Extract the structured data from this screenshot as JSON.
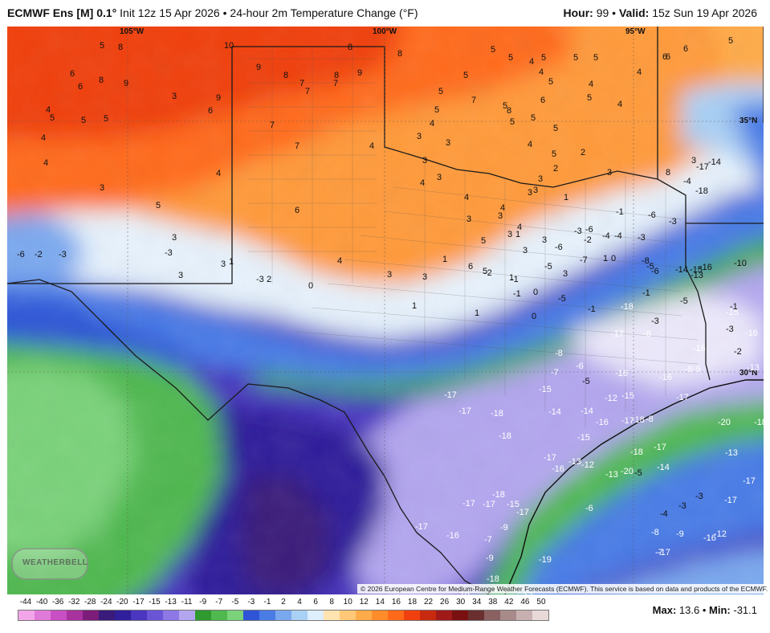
{
  "header": {
    "model": "ECMWF Ens [M] 0.1°",
    "init": "Init 12z 15 Apr 2026",
    "product": "24-hour 2m Temperature Change (°F)",
    "hour_label": "Hour:",
    "hour_value": "99",
    "valid_label": "Valid:",
    "valid_value": "15z Sun 19 Apr 2026"
  },
  "footer": {
    "max_label": "Max:",
    "max_value": "13.6",
    "min_label": "Min:",
    "min_value": "-31.1",
    "credit": "© 2026 European Centre for Medium-Range Weather Forecasts (ECMWF). This service is based on data and products of the ECMWF.",
    "logo": "WEATHERBELL"
  },
  "map": {
    "grid_labels": [
      "105°W",
      "100°W",
      "95°W",
      "35°N",
      "30°N"
    ],
    "values": [
      "5",
      "8",
      "10",
      "8",
      "8",
      "5",
      "5",
      "5",
      "5",
      "5",
      "6",
      "6",
      "6",
      "5",
      "9",
      "8",
      "7",
      "8",
      "9",
      "7",
      "5",
      "5",
      "4",
      "4",
      "5",
      "4",
      "6",
      "6",
      "8",
      "9",
      "3",
      "7",
      "5",
      "4",
      "6",
      "5",
      "4",
      "7",
      "9",
      "4",
      "5",
      "5",
      "5",
      "6",
      "4",
      "4",
      "3",
      "4",
      "5",
      "7",
      "8",
      "5",
      "5",
      "4",
      "5",
      "5",
      "3",
      "4",
      "7",
      "4",
      "3",
      "3",
      "4",
      "3",
      "3",
      "5",
      "6",
      "5",
      "4",
      "3",
      "3",
      "3",
      "2",
      "3",
      "8",
      "3",
      "3",
      "5",
      "6",
      "4",
      "3",
      "3",
      "3",
      "1",
      "1",
      "3",
      "1",
      "4",
      "3",
      "2",
      "-2",
      "3",
      "4",
      "-3",
      "-6",
      "1",
      "-3",
      "3",
      "3",
      "2",
      "1",
      "0",
      "1",
      "-3",
      "-1",
      "0",
      "1",
      "0",
      "-1",
      "-2",
      "-6",
      "-3",
      "3",
      "0",
      "1",
      "-8",
      "-14",
      "-16",
      "-15",
      "-10",
      "-6",
      "-3",
      "-4",
      "-5",
      "-3",
      "-4",
      "-2",
      "-5",
      "-6",
      "-7",
      "-1",
      "-1",
      "-1",
      "-6",
      "-5",
      "-5",
      "-13",
      "-15",
      "-14",
      "-17",
      "-18",
      "-4",
      "-3",
      "-2",
      "-1",
      "-13",
      "-16",
      "-16",
      "-18",
      "-17",
      "-3",
      "-6",
      "-8",
      "-7",
      "-6",
      "-5",
      "-15",
      "-16",
      "-17",
      "-20",
      "-18",
      "-13",
      "-8",
      "-8",
      "-9",
      "-12",
      "-15",
      "-16",
      "-17",
      "-18",
      "-17",
      "-17",
      "-18",
      "-18",
      "-14",
      "-14",
      "-15",
      "-16",
      "-18",
      "-17",
      "-17",
      "-13",
      "-16",
      "-12",
      "-13",
      "-14",
      "-17",
      "-18",
      "-17",
      "-17",
      "-9",
      "-15",
      "-18",
      "-18",
      "-17",
      "-16",
      "-17",
      "-7",
      "-9",
      "-19",
      "-19",
      "-17",
      "-18",
      "-16",
      "-17",
      "-6",
      "-5",
      "-20",
      "-19",
      "-17",
      "-12",
      "-8",
      "-4",
      "-3",
      "-3",
      "-17",
      "-16",
      "-9",
      "-7"
    ]
  },
  "colorbar": {
    "labels": [
      "-44",
      "-40",
      "-36",
      "-32",
      "-28",
      "-24",
      "-20",
      "-17",
      "-15",
      "-13",
      "-11",
      "-9",
      "-7",
      "-5",
      "-3",
      "-1",
      "2",
      "4",
      "6",
      "8",
      "10",
      "12",
      "14",
      "16",
      "18",
      "22",
      "26",
      "30",
      "34",
      "38",
      "42",
      "46",
      "50"
    ],
    "colors": [
      "#f2a6e8",
      "#e07ad8",
      "#c94fc4",
      "#a8329e",
      "#7d1d7a",
      "#3a1a7a",
      "#2f1f9a",
      "#4a36c0",
      "#6a55d6",
      "#8d78e6",
      "#b3a6ef",
      "#2f9a2f",
      "#4fb84f",
      "#7ad27a",
      "#2f55d6",
      "#4a7ce6",
      "#7aa8ef",
      "#a9d0f5",
      "#ddeefc",
      "#ffe3b0",
      "#ffc878",
      "#ffab4a",
      "#ff8c2a",
      "#ff6a1a",
      "#f04010",
      "#c82a10",
      "#a01a1a",
      "#7a1010",
      "#6a3030",
      "#8a6060",
      "#a88a8a",
      "#c8b0b0",
      "#e8d8d8"
    ]
  }
}
